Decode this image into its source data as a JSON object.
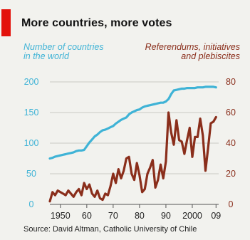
{
  "title": "More countries, more votes",
  "left_axis_label": [
    "Number of countries",
    "in the world"
  ],
  "right_axis_label": [
    "Referendums, initiatives",
    "and plebiscites"
  ],
  "source": "Source: David Altman, Catholic University of Chile",
  "colors": {
    "accent": "#e3120b",
    "countries": "#3fb3d6",
    "referendums": "#8a2e1b",
    "grid": "#c9c9c4"
  },
  "chart_data": {
    "type": "line",
    "x_ticks": [
      1950,
      1960,
      1970,
      1980,
      1990,
      2000,
      2009
    ],
    "x_tick_labels": [
      "1950",
      "60",
      "70",
      "80",
      "90",
      "2000",
      "09"
    ],
    "xlim": [
      1946,
      2010
    ],
    "left_axis": {
      "ylim": [
        0,
        200
      ],
      "ticks": [
        0,
        50,
        100,
        150,
        200
      ]
    },
    "right_axis": {
      "ylim": [
        0,
        80
      ],
      "ticks": [
        0,
        20,
        40,
        60,
        80
      ]
    },
    "series": [
      {
        "axis": "left",
        "x": [
          1946,
          1947,
          1948,
          1949,
          1950,
          1951,
          1952,
          1953,
          1954,
          1955,
          1956,
          1957,
          1958,
          1959,
          1960,
          1961,
          1962,
          1963,
          1964,
          1965,
          1966,
          1967,
          1968,
          1969,
          1970,
          1971,
          1972,
          1973,
          1974,
          1975,
          1976,
          1977,
          1978,
          1979,
          1980,
          1981,
          1982,
          1983,
          1984,
          1985,
          1986,
          1987,
          1988,
          1989,
          1990,
          1991,
          1992,
          1993,
          1994,
          1995,
          1996,
          1997,
          1998,
          1999,
          2000,
          2001,
          2002,
          2003,
          2004,
          2005,
          2006,
          2007,
          2008,
          2009
        ],
        "values": [
          75,
          76,
          78,
          79,
          80,
          81,
          82,
          83,
          84,
          85,
          87,
          88,
          88,
          89,
          95,
          101,
          106,
          111,
          114,
          118,
          121,
          122,
          124,
          126,
          128,
          132,
          135,
          138,
          140,
          142,
          147,
          150,
          152,
          154,
          155,
          158,
          160,
          161,
          162,
          163,
          164,
          165,
          166,
          166,
          168,
          172,
          180,
          186,
          187,
          188,
          189,
          189,
          190,
          190,
          190,
          190,
          191,
          191,
          191,
          192,
          192,
          192,
          192,
          191
        ]
      },
      {
        "axis": "right",
        "x": [
          1946,
          1947,
          1948,
          1949,
          1950,
          1951,
          1952,
          1953,
          1954,
          1955,
          1956,
          1957,
          1958,
          1959,
          1960,
          1961,
          1962,
          1963,
          1964,
          1965,
          1966,
          1967,
          1968,
          1969,
          1970,
          1971,
          1972,
          1973,
          1974,
          1975,
          1976,
          1977,
          1978,
          1979,
          1980,
          1981,
          1982,
          1983,
          1984,
          1985,
          1986,
          1987,
          1988,
          1989,
          1990,
          1991,
          1992,
          1993,
          1994,
          1995,
          1996,
          1997,
          1998,
          1999,
          2000,
          2001,
          2002,
          2003,
          2004,
          2005,
          2006,
          2007,
          2008,
          2009
        ],
        "values": [
          2,
          8,
          6,
          9,
          8,
          7,
          6,
          9,
          7,
          5,
          8,
          10,
          6,
          14,
          10,
          13,
          7,
          5,
          9,
          4,
          3,
          7,
          6,
          12,
          20,
          14,
          23,
          17,
          22,
          30,
          31,
          20,
          16,
          27,
          19,
          8,
          10,
          20,
          24,
          29,
          11,
          16,
          26,
          17,
          28,
          60,
          47,
          39,
          55,
          42,
          41,
          33,
          42,
          50,
          31,
          44,
          44,
          56,
          45,
          22,
          37,
          53,
          54,
          57
        ]
      }
    ]
  }
}
